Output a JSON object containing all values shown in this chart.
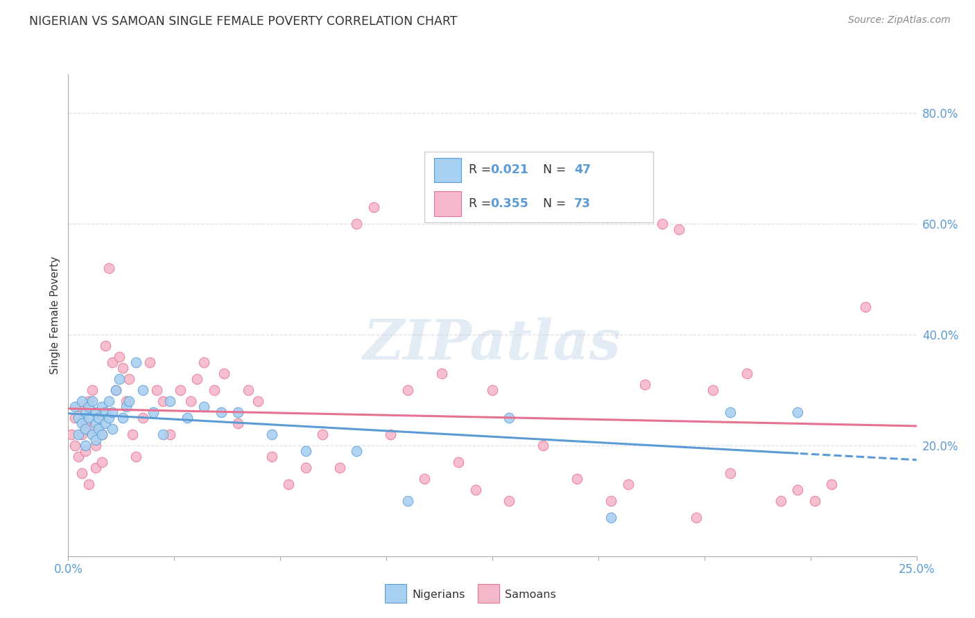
{
  "title": "NIGERIAN VS SAMOAN SINGLE FEMALE POVERTY CORRELATION CHART",
  "source": "Source: ZipAtlas.com",
  "ylabel": "Single Female Poverty",
  "right_yticks": [
    "80.0%",
    "60.0%",
    "40.0%",
    "20.0%"
  ],
  "right_ytick_vals": [
    0.8,
    0.6,
    0.4,
    0.2
  ],
  "xlim": [
    0.0,
    0.25
  ],
  "ylim": [
    0.0,
    0.87
  ],
  "nigerian_R": "0.021",
  "nigerian_N": "47",
  "samoan_R": "0.355",
  "samoan_N": "73",
  "nigerian_color": "#A8D0F0",
  "samoan_color": "#F5B8CB",
  "nigerian_edge_color": "#5B9BD5",
  "samoan_edge_color": "#E87090",
  "nigerian_line_color": "#5B9BD5",
  "samoan_line_color": "#E87090",
  "watermark": "ZIPatlas",
  "background_color": "#FFFFFF",
  "grid_color": "#DDDDEE",
  "legend_text_color": "#333333",
  "accent_color": "#5B9BD5",
  "nigerian_x": [
    0.002,
    0.003,
    0.003,
    0.004,
    0.004,
    0.005,
    0.005,
    0.005,
    0.006,
    0.006,
    0.007,
    0.007,
    0.008,
    0.008,
    0.008,
    0.009,
    0.009,
    0.01,
    0.01,
    0.011,
    0.011,
    0.012,
    0.012,
    0.013,
    0.013,
    0.014,
    0.015,
    0.016,
    0.017,
    0.018,
    0.02,
    0.022,
    0.025,
    0.028,
    0.03,
    0.035,
    0.04,
    0.045,
    0.05,
    0.06,
    0.07,
    0.085,
    0.1,
    0.13,
    0.16,
    0.195,
    0.215
  ],
  "nigerian_y": [
    0.27,
    0.25,
    0.22,
    0.28,
    0.24,
    0.26,
    0.23,
    0.2,
    0.25,
    0.27,
    0.22,
    0.28,
    0.24,
    0.26,
    0.21,
    0.25,
    0.23,
    0.27,
    0.22,
    0.26,
    0.24,
    0.25,
    0.28,
    0.23,
    0.26,
    0.3,
    0.32,
    0.25,
    0.27,
    0.28,
    0.35,
    0.3,
    0.26,
    0.22,
    0.28,
    0.25,
    0.27,
    0.26,
    0.26,
    0.22,
    0.19,
    0.19,
    0.1,
    0.25,
    0.07,
    0.26,
    0.26
  ],
  "samoan_x": [
    0.001,
    0.002,
    0.002,
    0.003,
    0.003,
    0.004,
    0.004,
    0.005,
    0.005,
    0.006,
    0.006,
    0.007,
    0.007,
    0.008,
    0.008,
    0.009,
    0.01,
    0.01,
    0.011,
    0.012,
    0.013,
    0.014,
    0.015,
    0.016,
    0.017,
    0.018,
    0.019,
    0.02,
    0.022,
    0.024,
    0.026,
    0.028,
    0.03,
    0.033,
    0.036,
    0.038,
    0.04,
    0.043,
    0.046,
    0.05,
    0.053,
    0.056,
    0.06,
    0.065,
    0.07,
    0.075,
    0.08,
    0.085,
    0.09,
    0.095,
    0.1,
    0.105,
    0.11,
    0.115,
    0.12,
    0.125,
    0.13,
    0.14,
    0.15,
    0.16,
    0.165,
    0.17,
    0.175,
    0.18,
    0.185,
    0.19,
    0.195,
    0.2,
    0.21,
    0.215,
    0.22,
    0.225,
    0.235
  ],
  "samoan_y": [
    0.22,
    0.2,
    0.25,
    0.18,
    0.27,
    0.22,
    0.15,
    0.24,
    0.19,
    0.28,
    0.13,
    0.23,
    0.3,
    0.2,
    0.16,
    0.25,
    0.22,
    0.17,
    0.38,
    0.52,
    0.35,
    0.3,
    0.36,
    0.34,
    0.28,
    0.32,
    0.22,
    0.18,
    0.25,
    0.35,
    0.3,
    0.28,
    0.22,
    0.3,
    0.28,
    0.32,
    0.35,
    0.3,
    0.33,
    0.24,
    0.3,
    0.28,
    0.18,
    0.13,
    0.16,
    0.22,
    0.16,
    0.6,
    0.63,
    0.22,
    0.3,
    0.14,
    0.33,
    0.17,
    0.12,
    0.3,
    0.1,
    0.2,
    0.14,
    0.1,
    0.13,
    0.31,
    0.6,
    0.59,
    0.07,
    0.3,
    0.15,
    0.33,
    0.1,
    0.12,
    0.1,
    0.13,
    0.45
  ]
}
